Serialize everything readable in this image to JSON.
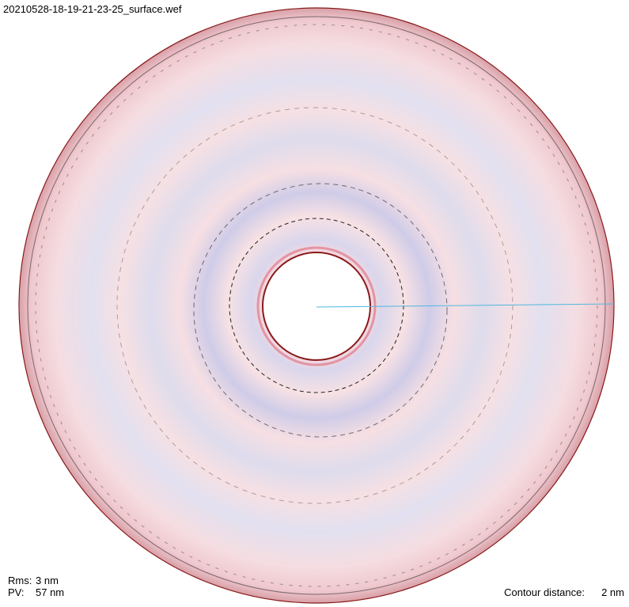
{
  "title": "20210528-18-19-21-23-25_surface.wef",
  "stats": [
    {
      "label": "Rms:",
      "value": "3 nm"
    },
    {
      "label": "PV:",
      "value": "57 nm"
    }
  ],
  "contour": {
    "label": "Contour distance:",
    "value": "2 nm"
  }
}
